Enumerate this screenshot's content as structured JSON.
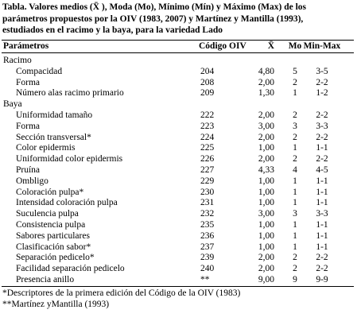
{
  "caption": [
    "Tabla. Valores medios (X̄ ), Moda (Mo), Mínimo (Mín) y Máximo (Max) de los",
    "parámetros propuestos por la OIV (1983, 2007) y Martínez y Mantilla (1993),",
    "estudiados en el racimo y la baya, para la variedad  Lado"
  ],
  "table": {
    "header": [
      "Parámetros",
      "Código OIV",
      "X̄",
      "Mo",
      "Min-Max"
    ],
    "sections": [
      {
        "title": "Racimo",
        "rows": [
          [
            "Compacidad",
            "204",
            "4,80",
            "5",
            "3-5"
          ],
          [
            "Forma",
            "208",
            "2,00",
            "2",
            "2-2"
          ],
          [
            "Número alas racimo primario",
            "209",
            "1,30",
            "1",
            "1-2"
          ]
        ]
      },
      {
        "title": "Baya",
        "rows": [
          [
            "Uniformidad tamaño",
            "222",
            "2,00",
            "2",
            "2-2"
          ],
          [
            "Forma",
            "223",
            "3,00",
            "3",
            "3-3"
          ],
          [
            "Sección transversal*",
            "224",
            "2,00",
            "2",
            "2-2"
          ],
          [
            "Color epidermis",
            "225",
            "1,00",
            "1",
            "1-1"
          ],
          [
            "Uniformidad color epidermis",
            "226",
            "2,00",
            "2",
            "2-2"
          ],
          [
            "Pruína",
            "227",
            "4,33",
            "4",
            "4-5"
          ],
          [
            "Ombligo",
            "229",
            "1,00",
            "1",
            "1-1"
          ],
          [
            "Coloración pulpa*",
            "230",
            "1,00",
            "1",
            "1-1"
          ],
          [
            "Intensidad coloración pulpa",
            "231",
            "1,00",
            "1",
            "1-1"
          ],
          [
            "Suculencia pulpa",
            "232",
            "3,00",
            "3",
            "3-3"
          ],
          [
            "Consistencia pulpa",
            "235",
            "1,00",
            "1",
            "1-1"
          ],
          [
            "Sabores particulares",
            "236",
            "1,00",
            "1",
            "1-1"
          ],
          [
            "Clasificación sabor*",
            "237",
            "1,00",
            "1",
            "1-1"
          ],
          [
            "Separación pedicelo*",
            "239",
            "2,00",
            "2",
            "2-2"
          ],
          [
            "Facilidad separación pedicelo",
            "240",
            "2,00",
            "2",
            "2-2"
          ],
          [
            "Presencia anillo",
            "**",
            "9,00",
            "9",
            "9-9"
          ]
        ]
      }
    ]
  },
  "footnotes": [
    "*Descriptores de la primera edición del Código de la OIV (1983)",
    "**Martínez yMantilla (1993)"
  ]
}
